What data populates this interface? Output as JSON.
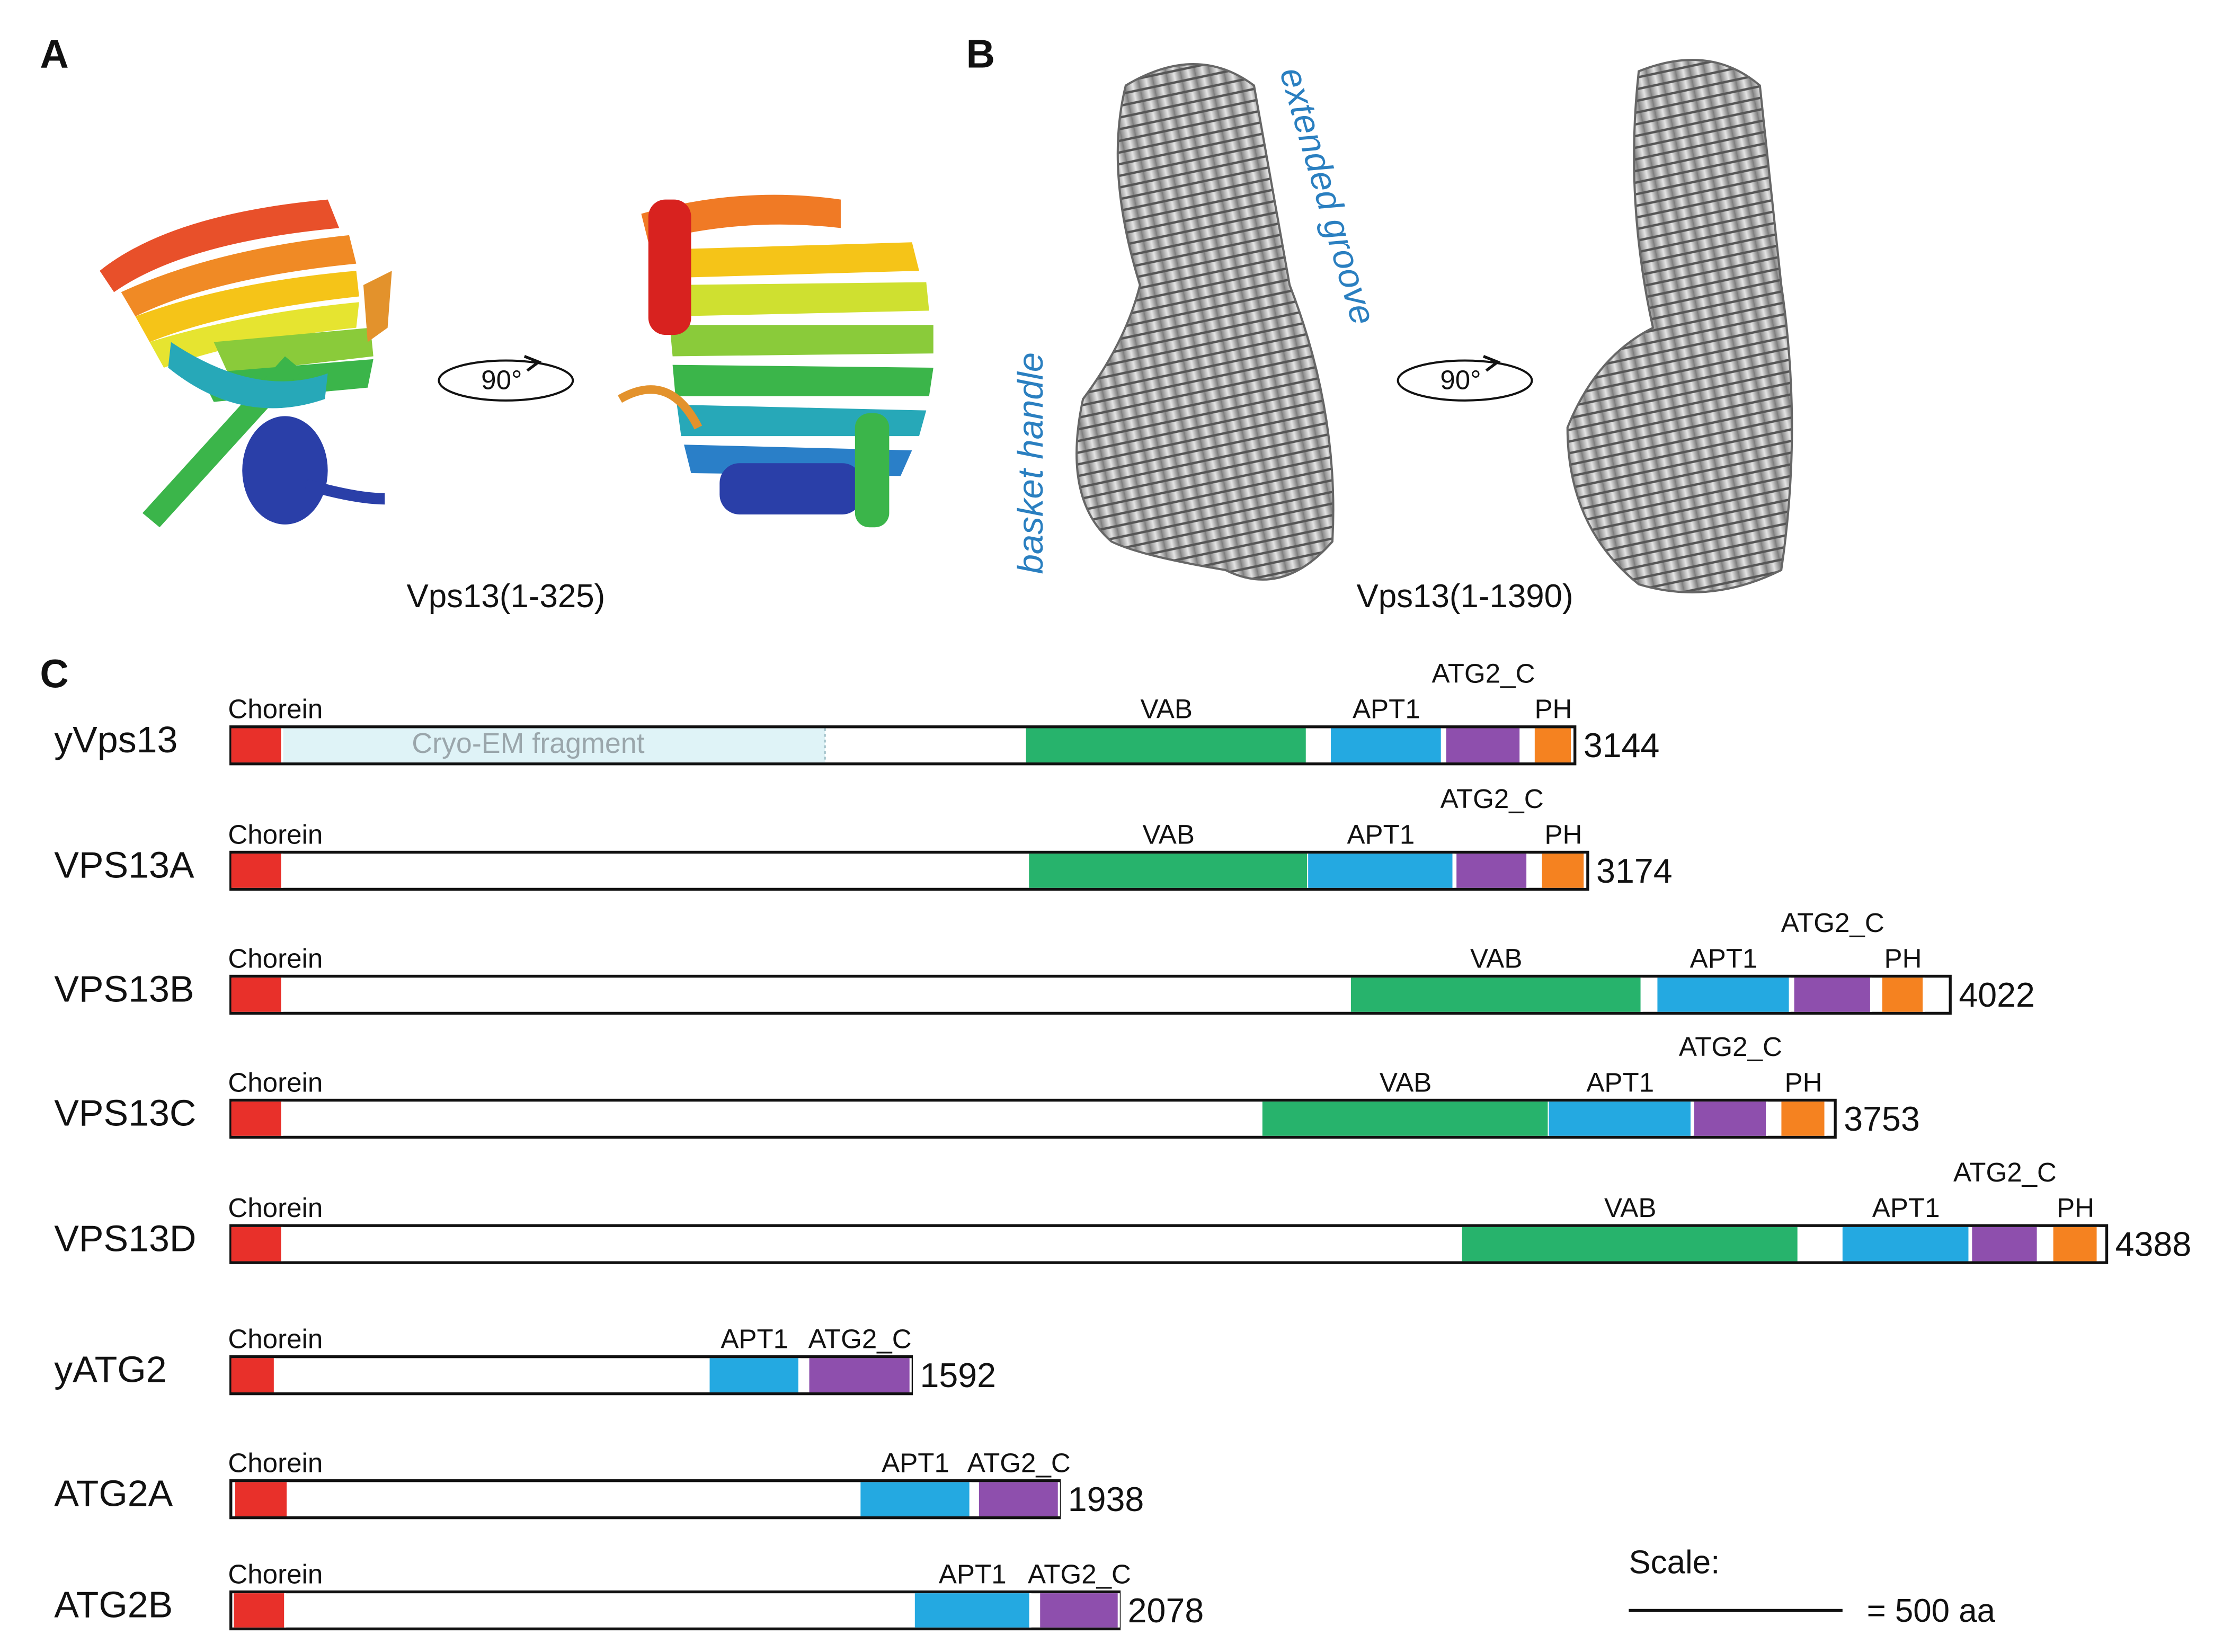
{
  "panel_labels": [
    "A",
    "B",
    "C"
  ],
  "panel_a": {
    "caption": "Vps13(1-325)",
    "rotation": "90°"
  },
  "panel_b": {
    "caption": "Vps13(1-1390)",
    "rotation": "90°",
    "annotations": [
      "extended groove",
      "basket handle"
    ]
  },
  "domain_colors": {
    "Chorein": "#e8302a",
    "VAB": "#27b36c",
    "APT1": "#24a9e1",
    "ATG2_C": "#8e4fad",
    "PH": "#f58220",
    "fragment": "#dff3f7"
  },
  "proteins": [
    {
      "name": "yVps13",
      "length": 3144,
      "fragment": {
        "label": "Cryo-EM fragment",
        "start": 1,
        "end": 1390
      },
      "domains": [
        {
          "name": "Chorein",
          "start": 1,
          "end": 120
        },
        {
          "name": "VAB",
          "start": 1860,
          "end": 2517
        },
        {
          "name": "APT1",
          "start": 2573,
          "end": 2833
        },
        {
          "name": "ATG2_C",
          "start": 2843,
          "end": 3017
        },
        {
          "name": "PH",
          "start": 3050,
          "end": 3137
        }
      ]
    },
    {
      "name": "VPS13A",
      "length": 3174,
      "domains": [
        {
          "name": "Chorein",
          "start": 1,
          "end": 120
        },
        {
          "name": "VAB",
          "start": 1867,
          "end": 2520
        },
        {
          "name": "APT1",
          "start": 2520,
          "end": 2860
        },
        {
          "name": "ATG2_C",
          "start": 2867,
          "end": 3033
        },
        {
          "name": "PH",
          "start": 3067,
          "end": 3167
        }
      ]
    },
    {
      "name": "VPS13B",
      "length": 4022,
      "domains": [
        {
          "name": "Chorein",
          "start": 1,
          "end": 120
        },
        {
          "name": "VAB",
          "start": 2620,
          "end": 3300
        },
        {
          "name": "APT1",
          "start": 3337,
          "end": 3647
        },
        {
          "name": "ATG2_C",
          "start": 3657,
          "end": 3837
        },
        {
          "name": "PH",
          "start": 3863,
          "end": 3960
        }
      ]
    },
    {
      "name": "VPS13C",
      "length": 3753,
      "domains": [
        {
          "name": "Chorein",
          "start": 1,
          "end": 120
        },
        {
          "name": "VAB",
          "start": 2413,
          "end": 3083
        },
        {
          "name": "APT1",
          "start": 3083,
          "end": 3417
        },
        {
          "name": "ATG2_C",
          "start": 3423,
          "end": 3593
        },
        {
          "name": "PH",
          "start": 3627,
          "end": 3730
        }
      ]
    },
    {
      "name": "VPS13D",
      "length": 4388,
      "domains": [
        {
          "name": "Chorein",
          "start": 1,
          "end": 120
        },
        {
          "name": "VAB",
          "start": 2880,
          "end": 3667
        },
        {
          "name": "APT1",
          "start": 3770,
          "end": 4067
        },
        {
          "name": "ATG2_C",
          "start": 4073,
          "end": 4227
        },
        {
          "name": "PH",
          "start": 4263,
          "end": 4367
        }
      ]
    },
    {
      "name": "yATG2",
      "length": 1592,
      "domains": [
        {
          "name": "Chorein",
          "start": 1,
          "end": 103
        },
        {
          "name": "APT1",
          "start": 1120,
          "end": 1330
        },
        {
          "name": "ATG2_C",
          "start": 1353,
          "end": 1590
        }
      ]
    },
    {
      "name": "ATG2A",
      "length": 1938,
      "domains": [
        {
          "name": "Chorein",
          "start": 10,
          "end": 133
        },
        {
          "name": "APT1",
          "start": 1473,
          "end": 1730
        },
        {
          "name": "ATG2_C",
          "start": 1750,
          "end": 1937
        }
      ]
    },
    {
      "name": "ATG2B",
      "length": 2078,
      "domains": [
        {
          "name": "Chorein",
          "start": 7,
          "end": 127
        },
        {
          "name": "APT1",
          "start": 1600,
          "end": 1870
        },
        {
          "name": "ATG2_C",
          "start": 1893,
          "end": 2077
        }
      ]
    }
  ],
  "scale_bar": {
    "title": "Scale:",
    "label": "= 500 aa",
    "length": 500
  }
}
